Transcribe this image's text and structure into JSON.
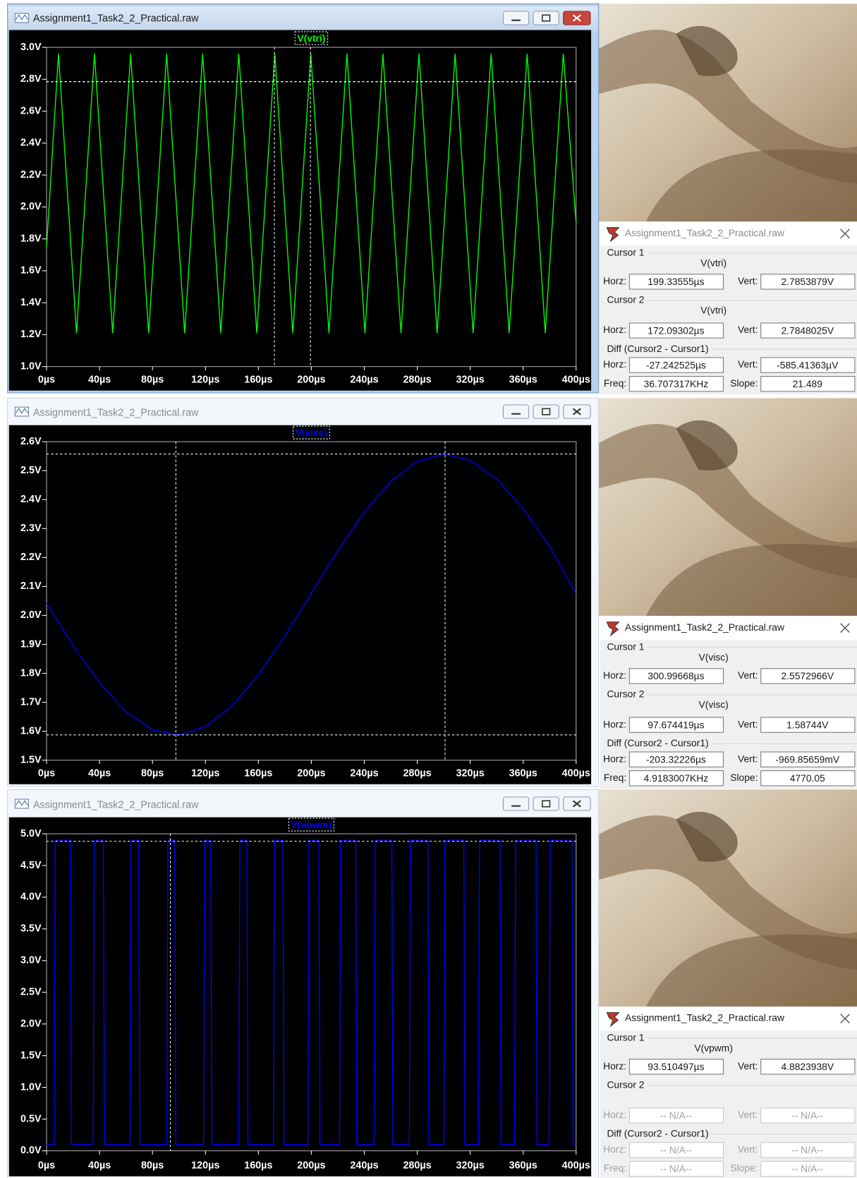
{
  "chart_data": [
    {
      "type": "line",
      "series": [
        {
          "name": "V(vtri)",
          "color": "#00ff00",
          "x": [
            0,
            9.0,
            22.6,
            36.2,
            49.9,
            63.5,
            77.1,
            90.7,
            104.3,
            117.9,
            131.6,
            145.2,
            158.8,
            172.4,
            186.0,
            199.6,
            213.3,
            226.9,
            240.5,
            254.1,
            267.7,
            281.3,
            295.0,
            308.6,
            322.2,
            335.8,
            349.4,
            363.0,
            376.7,
            390.3,
            400
          ],
          "values": [
            1.75,
            2.96,
            1.21,
            2.96,
            1.21,
            2.96,
            1.21,
            2.96,
            1.21,
            2.96,
            1.21,
            2.96,
            1.21,
            2.96,
            1.21,
            2.96,
            1.21,
            2.96,
            1.21,
            2.96,
            1.21,
            2.96,
            1.21,
            2.96,
            1.21,
            2.96,
            1.21,
            2.96,
            1.21,
            2.96,
            1.9
          ]
        }
      ],
      "xlim": [
        0,
        400
      ],
      "ylim": [
        1.0,
        3.0
      ],
      "xticks": [
        {
          "value": 0,
          "label": "0µs"
        },
        {
          "value": 40,
          "label": "40µs"
        },
        {
          "value": 80,
          "label": "80µs"
        },
        {
          "value": 120,
          "label": "120µs"
        },
        {
          "value": 160,
          "label": "160µs"
        },
        {
          "value": 200,
          "label": "200µs"
        },
        {
          "value": 240,
          "label": "240µs"
        },
        {
          "value": 280,
          "label": "280µs"
        },
        {
          "value": 320,
          "label": "320µs"
        },
        {
          "value": 360,
          "label": "360µs"
        },
        {
          "value": 400,
          "label": "400µs"
        }
      ],
      "yticks": [
        {
          "value": 1.0,
          "label": "1.0V"
        },
        {
          "value": 1.2,
          "label": "1.2V"
        },
        {
          "value": 1.4,
          "label": "1.4V"
        },
        {
          "value": 1.6,
          "label": "1.6V"
        },
        {
          "value": 1.8,
          "label": "1.8V"
        },
        {
          "value": 2.0,
          "label": "2.0V"
        },
        {
          "value": 2.2,
          "label": "2.2V"
        },
        {
          "value": 2.4,
          "label": "2.4V"
        },
        {
          "value": 2.6,
          "label": "2.6V"
        },
        {
          "value": 2.8,
          "label": "2.8V"
        },
        {
          "value": 3.0,
          "label": "3.0V"
        }
      ],
      "cursors": [
        {
          "x": 199.33555,
          "y": 2.7853879
        },
        {
          "x": 172.09302,
          "y": 2.7848025
        }
      ]
    },
    {
      "type": "line",
      "series": [
        {
          "name": "V(visc)",
          "color": "#0000ff",
          "x": [
            0,
            20,
            40,
            60,
            80,
            100,
            120,
            140,
            160,
            180,
            200,
            220,
            240,
            260,
            280,
            300,
            320,
            340,
            360,
            380,
            400
          ],
          "values": [
            2.042,
            1.896,
            1.767,
            1.667,
            1.605,
            1.587,
            1.616,
            1.687,
            1.795,
            1.929,
            2.077,
            2.224,
            2.357,
            2.463,
            2.532,
            2.557,
            2.536,
            2.471,
            2.369,
            2.238,
            2.075
          ]
        }
      ],
      "xlim": [
        0,
        400
      ],
      "ylim": [
        1.5,
        2.6
      ],
      "xticks": [
        {
          "value": 0,
          "label": "0µs"
        },
        {
          "value": 40,
          "label": "40µs"
        },
        {
          "value": 80,
          "label": "80µs"
        },
        {
          "value": 120,
          "label": "120µs"
        },
        {
          "value": 160,
          "label": "160µs"
        },
        {
          "value": 200,
          "label": "200µs"
        },
        {
          "value": 240,
          "label": "240µs"
        },
        {
          "value": 280,
          "label": "280µs"
        },
        {
          "value": 320,
          "label": "320µs"
        },
        {
          "value": 360,
          "label": "360µs"
        },
        {
          "value": 400,
          "label": "400µs"
        }
      ],
      "yticks": [
        {
          "value": 1.5,
          "label": "1.5V"
        },
        {
          "value": 1.6,
          "label": "1.6V"
        },
        {
          "value": 1.7,
          "label": "1.7V"
        },
        {
          "value": 1.8,
          "label": "1.8V"
        },
        {
          "value": 1.9,
          "label": "1.9V"
        },
        {
          "value": 2.0,
          "label": "2.0V"
        },
        {
          "value": 2.1,
          "label": "2.1V"
        },
        {
          "value": 2.2,
          "label": "2.2V"
        },
        {
          "value": 2.3,
          "label": "2.3V"
        },
        {
          "value": 2.4,
          "label": "2.4V"
        },
        {
          "value": 2.5,
          "label": "2.5V"
        },
        {
          "value": 2.6,
          "label": "2.6V"
        }
      ],
      "cursors": [
        {
          "x": 300.99668,
          "y": 2.5572966
        },
        {
          "x": 97.674419,
          "y": 1.58744
        }
      ]
    },
    {
      "type": "line",
      "series": [
        {
          "name": "V(vpwm)",
          "color": "#0000ff",
          "x": [
            0,
            5.7,
            6.5,
            17.9,
            18.7,
            35.2,
            36.0,
            42.9,
            43.7,
            63.0,
            63.8,
            69.6,
            70.4,
            90.8,
            91.6,
            96.8,
            97.6,
            118.6,
            119.4,
            124.0,
            124.8,
            145.2,
            146.0,
            151.3,
            152.1,
            171.3,
            172.1,
            178.5,
            179.3,
            197.4,
            198.2,
            205.7,
            206.5,
            221.3,
            222.1,
            233.5,
            234.3,
            247.4,
            248.2,
            260.8,
            261.6,
            274.0,
            274.8,
            288.0,
            288.8,
            300.1,
            300.9,
            315.2,
            316.0,
            326.2,
            327.0,
            342.5,
            343.3,
            353.5,
            354.3,
            369.7,
            370.5,
            379.6,
            380.4,
            396.9,
            397.7,
            400
          ],
          "values": [
            0.1,
            0.1,
            4.9,
            4.9,
            0.1,
            0.1,
            4.9,
            4.9,
            0.1,
            0.1,
            4.9,
            4.9,
            0.1,
            0.1,
            4.9,
            4.9,
            0.1,
            0.1,
            4.9,
            4.9,
            0.1,
            0.1,
            4.9,
            4.9,
            0.1,
            0.1,
            4.9,
            4.9,
            0.1,
            0.1,
            4.9,
            4.9,
            0.1,
            0.1,
            4.9,
            4.9,
            0.1,
            0.1,
            4.9,
            4.9,
            0.1,
            0.1,
            4.9,
            4.9,
            0.1,
            0.1,
            4.9,
            4.9,
            0.1,
            0.1,
            4.9,
            4.9,
            0.1,
            0.1,
            4.9,
            4.9,
            0.1,
            0.1,
            4.9,
            4.9,
            0.1,
            0.1
          ]
        }
      ],
      "xlim": [
        0,
        400
      ],
      "ylim": [
        0.0,
        5.0
      ],
      "xticks": [
        {
          "value": 0,
          "label": "0µs"
        },
        {
          "value": 40,
          "label": "40µs"
        },
        {
          "value": 80,
          "label": "80µs"
        },
        {
          "value": 120,
          "label": "120µs"
        },
        {
          "value": 160,
          "label": "160µs"
        },
        {
          "value": 200,
          "label": "200µs"
        },
        {
          "value": 240,
          "label": "240µs"
        },
        {
          "value": 280,
          "label": "280µs"
        },
        {
          "value": 320,
          "label": "320µs"
        },
        {
          "value": 360,
          "label": "360µs"
        },
        {
          "value": 400,
          "label": "400µs"
        }
      ],
      "yticks": [
        {
          "value": 0.0,
          "label": "0.0V"
        },
        {
          "value": 0.5,
          "label": "0.5V"
        },
        {
          "value": 1.0,
          "label": "1.0V"
        },
        {
          "value": 1.5,
          "label": "1.5V"
        },
        {
          "value": 2.0,
          "label": "2.0V"
        },
        {
          "value": 2.5,
          "label": "2.5V"
        },
        {
          "value": 3.0,
          "label": "3.0V"
        },
        {
          "value": 3.5,
          "label": "3.5V"
        },
        {
          "value": 4.0,
          "label": "4.0V"
        },
        {
          "value": 4.5,
          "label": "4.5V"
        },
        {
          "value": 5.0,
          "label": "5.0V"
        }
      ],
      "cursors": [
        {
          "x": 93.510497,
          "y": 4.8823938
        }
      ]
    }
  ],
  "windows": [
    {
      "title": "Assignment1_Task2_2_Practical.raw",
      "active": true
    },
    {
      "title": "Assignment1_Task2_2_Practical.raw",
      "active": false
    },
    {
      "title": "Assignment1_Task2_2_Practical.raw",
      "active": false
    }
  ],
  "cursor_panels": [
    {
      "title": "Assignment1_Task2_2_Practical.raw",
      "cursor1": {
        "heading": "Cursor 1",
        "trace": "V(vtri)",
        "horz_label": "Horz:",
        "horz": "199.33555µs",
        "vert_label": "Vert:",
        "vert": "2.7853879V"
      },
      "cursor2": {
        "heading": "Cursor 2",
        "trace": "V(vtri)",
        "horz_label": "Horz:",
        "horz": "172.09302µs",
        "vert_label": "Vert:",
        "vert": "2.7848025V"
      },
      "diff": {
        "heading": "Diff (Cursor2 - Cursor1)",
        "horz_label": "Horz:",
        "horz": "-27.242525µs",
        "vert_label": "Vert:",
        "vert": "-585.41363µV",
        "freq_label": "Freq:",
        "freq": "36.707317KHz",
        "slope_label": "Slope:",
        "slope": "21.489"
      }
    },
    {
      "title": "Assignment1_Task2_2_Practical.raw",
      "cursor1": {
        "heading": "Cursor 1",
        "trace": "V(visc)",
        "horz_label": "Horz:",
        "horz": "300.99668µs",
        "vert_label": "Vert:",
        "vert": "2.5572966V"
      },
      "cursor2": {
        "heading": "Cursor 2",
        "trace": "V(visc)",
        "horz_label": "Horz:",
        "horz": "97.674419µs",
        "vert_label": "Vert:",
        "vert": "1.58744V"
      },
      "diff": {
        "heading": "Diff (Cursor2 - Cursor1)",
        "horz_label": "Horz:",
        "horz": "-203.32226µs",
        "vert_label": "Vert:",
        "vert": "-969.85659mV",
        "freq_label": "Freq:",
        "freq": "4.9183007KHz",
        "slope_label": "Slope:",
        "slope": "4770.05"
      }
    },
    {
      "title": "Assignment1_Task2_2_Practical.raw",
      "cursor1": {
        "heading": "Cursor 1",
        "trace": "V(vpwm)",
        "horz_label": "Horz:",
        "horz": "93.510497µs",
        "vert_label": "Vert:",
        "vert": "4.8823938V"
      },
      "cursor2": {
        "heading": "Cursor 2",
        "disabled": true,
        "horz_label": "Horz:",
        "horz": "-- N/A--",
        "vert_label": "Vert:",
        "vert": "-- N/A--"
      },
      "diff": {
        "heading": "Diff (Cursor2 - Cursor1)",
        "disabled": true,
        "horz_label": "Horz:",
        "horz": "-- N/A--",
        "vert_label": "Vert:",
        "vert": "-- N/A--",
        "freq_label": "Freq:",
        "freq": "-- N/A--",
        "slope_label": "Slope:",
        "slope": "-- N/A--"
      }
    }
  ]
}
